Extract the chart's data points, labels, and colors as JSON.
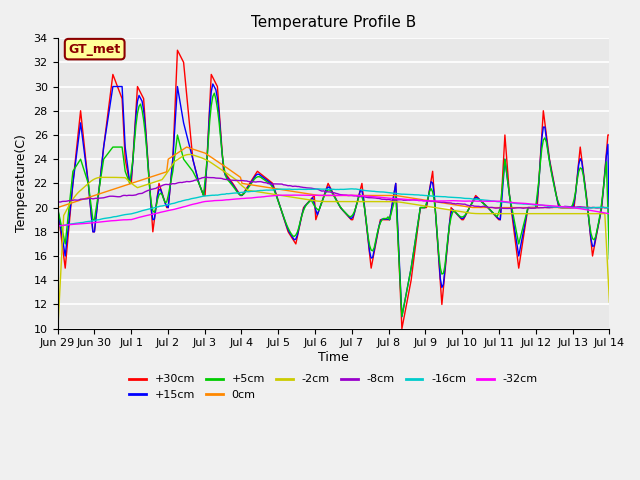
{
  "title": "Temperature Profile B",
  "xlabel": "Time",
  "ylabel": "Temperature(C)",
  "annotation": "GT_met",
  "ylim": [
    10,
    34
  ],
  "bg_color": "#e8e8e8",
  "plot_bg": "#e8e8e8",
  "legend_entries": [
    "+30cm",
    "+15cm",
    "+5cm",
    "0cm",
    "-2cm",
    "-8cm",
    "-16cm",
    "-32cm"
  ],
  "legend_colors": [
    "#ff0000",
    "#0000ff",
    "#00cc00",
    "#ff8800",
    "#cccc00",
    "#9900cc",
    "#00cccc",
    "#ff00ff"
  ],
  "x_labels": [
    "Jun 29",
    "Jun 30",
    "Jul 1",
    "Jul 2",
    "Jul 3",
    "Jul 4",
    "Jul 5",
    "Jul 6",
    "Jul 7",
    "Jul 8",
    "Jul 9",
    "Jul 10",
    "Jul 11",
    "Jul 12",
    "Jul 13",
    "Jul 14"
  ]
}
